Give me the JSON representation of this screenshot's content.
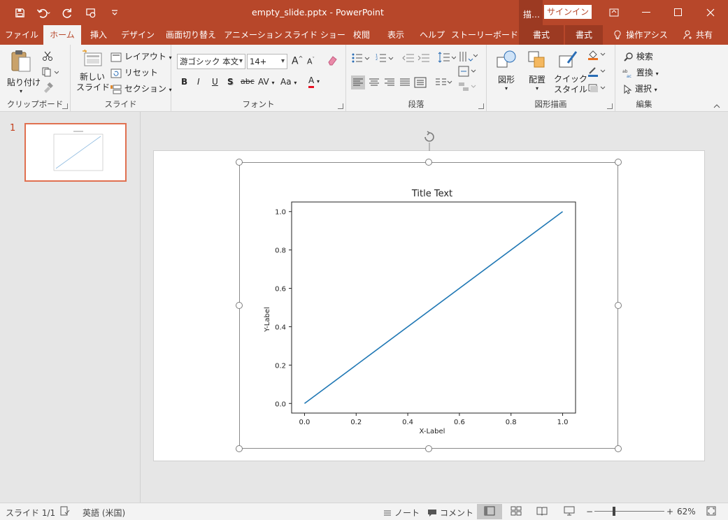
{
  "window": {
    "title": "empty_slide.pptx  -  PowerPoint",
    "context_header": "描…",
    "signin": "サインイン"
  },
  "tabs": [
    "ファイル",
    "ホーム",
    "挿入",
    "デザイン",
    "画面切り替え",
    "アニメーション",
    "スライド ショー",
    "校閲",
    "表示",
    "ヘルプ",
    "ストーリーボード",
    "書式",
    "書式"
  ],
  "tell_me": "操作アシス",
  "share": "共有",
  "ribbon": {
    "clipboard": {
      "paste": "貼り付け",
      "label": "クリップボード"
    },
    "slides": {
      "new_slide_1": "新しい",
      "new_slide_2": "スライド",
      "layout": "レイアウト",
      "reset": "リセット",
      "section": "セクション",
      "label": "スライド"
    },
    "font": {
      "font_name": "游ゴシック 本文",
      "font_size": "14+",
      "label": "フォント",
      "bold": "B",
      "italic": "I",
      "underline": "U",
      "shadow": "S",
      "strike": "abc",
      "spacing": "AV",
      "case": "Aa",
      "color": "A",
      "grow": "A",
      "shrink": "A"
    },
    "paragraph": {
      "label": "段落"
    },
    "drawing": {
      "shapes": "図形",
      "arrange": "配置",
      "quick_1": "クイック",
      "quick_2": "スタイル",
      "label": "図形描画"
    },
    "editing": {
      "find": "検索",
      "replace": "置換",
      "select": "選択",
      "label": "編集"
    }
  },
  "slide_panel": {
    "number": "1"
  },
  "colors": {
    "accent": "#b7472a",
    "line": "#1f77b4"
  },
  "chart_data": {
    "type": "line",
    "title": "Title Text",
    "xlabel": "X-Label",
    "ylabel": "Y-Label",
    "x": [
      0.0,
      1.0
    ],
    "series": [
      {
        "values": [
          0.0,
          1.0
        ]
      }
    ],
    "xlim": [
      -0.05,
      1.05
    ],
    "ylim": [
      -0.05,
      1.05
    ],
    "xticks": [
      "0.0",
      "0.2",
      "0.4",
      "0.6",
      "0.8",
      "1.0"
    ],
    "yticks": [
      "0.0",
      "0.2",
      "0.4",
      "0.6",
      "0.8",
      "1.0"
    ],
    "grid": false
  },
  "status": {
    "slide": "スライド 1/1",
    "language": "英語 (米国)",
    "notes": "ノート",
    "comments": "コメント",
    "zoom": "62%"
  }
}
